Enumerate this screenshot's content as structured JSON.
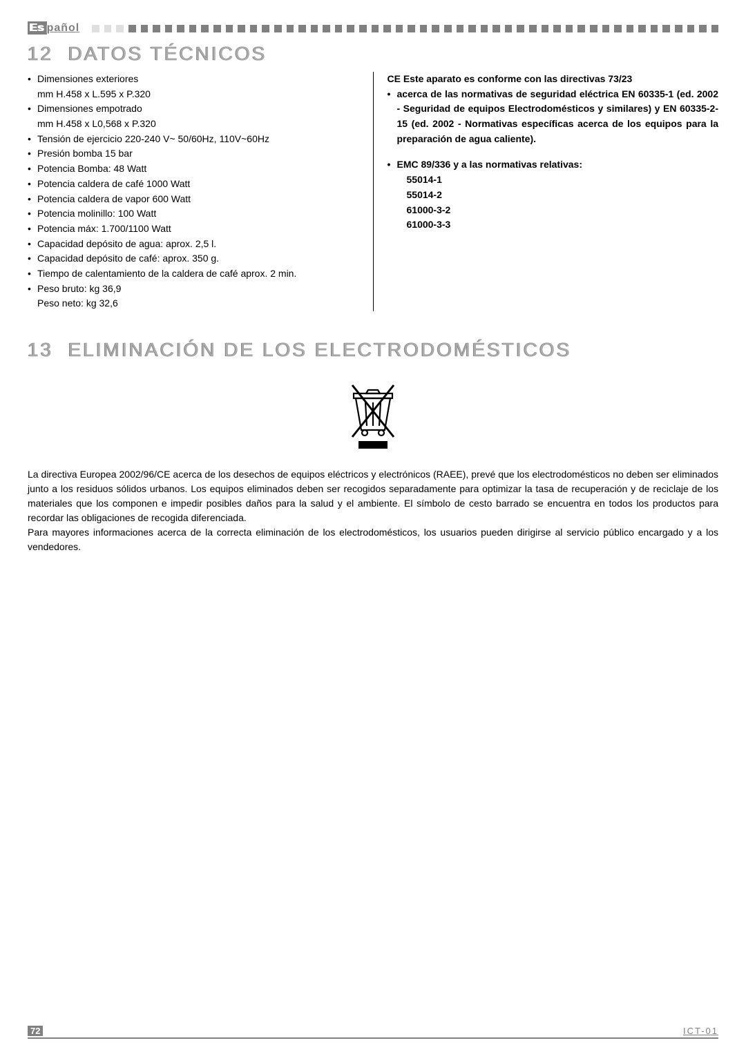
{
  "header": {
    "language_prefix": "Es",
    "language_suffix": "pañol",
    "squares_count": 52,
    "light_squares": 3
  },
  "section12": {
    "number": "12",
    "title": "DATOS TÉCNICOS",
    "left_items": [
      {
        "text": "Dimensiones exteriores",
        "sub": "mm H.458 x L.595 x P.320"
      },
      {
        "text": "Dimensiones empotrado",
        "sub": "mm H.458 x L0,568 x P.320"
      },
      {
        "text": "Tensión de ejercicio   220-240 V~ 50/60Hz, 110V~60Hz"
      },
      {
        "text": "Presión bomba 15 bar"
      },
      {
        "text": "Potencia Bomba:   48 Watt"
      },
      {
        "text": "Potencia caldera de café 1000 Watt"
      },
      {
        "text": "Potencia caldera de vapor 600 Watt"
      },
      {
        "text": "Potencia molinillo: 100 Watt"
      },
      {
        "text": "Potencia máx: 1.700/1100 Watt"
      },
      {
        "text": "Capacidad depósito de agua: aprox. 2,5 l."
      },
      {
        "text": "Capacidad depósito de café: aprox. 350 g."
      },
      {
        "text": "Tiempo de calentamiento de la caldera de café aprox. 2 min."
      },
      {
        "text": "Peso bruto: kg 36,9",
        "sub": "Peso neto: kg 32,6"
      }
    ],
    "right_ce_line": "CE  Este aparato es conforme con las directivas 73/23",
    "right_bullet1": "acerca de las normativas de seguridad eléctrica  EN 60335-1 (ed. 2002 - Seguridad de equipos Electrodomésticos y similares) y EN 60335-2-15 (ed. 2002 - Normativas específicas acerca de los equipos para la preparación de agua caliente).",
    "right_bullet2": "EMC 89/336 y a las normativas relativas:",
    "right_standards": [
      "55014-1",
      "55014-2",
      "61000-3-2",
      "61000-3-3"
    ]
  },
  "section13": {
    "number": "13",
    "title": "ELIMINACIÓN DE LOS ELECTRODOMÉSTICOS",
    "body": "La directiva Europea 2002/96/CE acerca de los desechos de equipos eléctricos y electrónicos (RAEE), prevé que los electrodomésticos no deben ser eliminados junto a los residuos sólidos urbanos. Los equipos eliminados deben ser recogidos separadamente para optimizar la tasa de recuperación y de reciclaje de los materiales que los componen e impedir posibles daños para la salud y el ambiente. El símbolo de cesto barrado se encuentra en todos los productos para recordar las obligaciones de recogida diferenciada.\nPara mayores informaciones acerca de la correcta eliminación de los electrodomésticos, los usuarios pueden dirigirse al servicio público encargado y a los vendedores."
  },
  "footer": {
    "page": "72",
    "code": "ICT-01"
  }
}
